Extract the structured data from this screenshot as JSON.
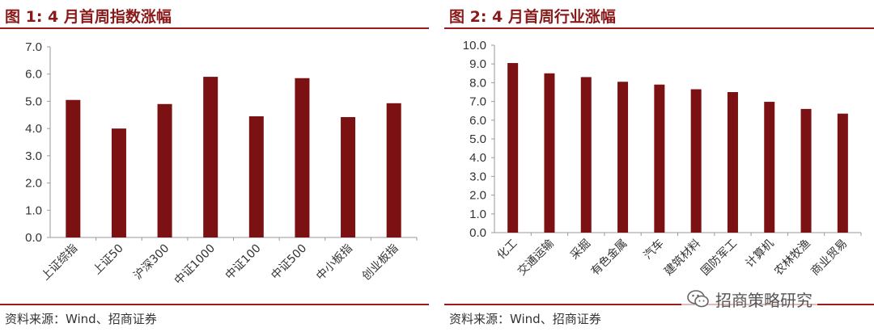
{
  "left": {
    "title": "图 1:  4 月首周指数涨幅",
    "source": "资料来源：Wind、招商证券"
  },
  "right": {
    "title": "图 2:  4 月首周行业涨幅",
    "source": "资料来源：Wind、招商证券"
  },
  "watermark": {
    "text": "招商策略研究",
    "icon": "wechat-icon"
  },
  "colors": {
    "bar": "#7b1113",
    "rule": "#9b1b1b",
    "title": "#8a1a1a"
  },
  "chart_data": [
    {
      "type": "bar",
      "title": "4 月首周指数涨幅",
      "categories": [
        "上证综指",
        "上证50",
        "沪深300",
        "中证1000",
        "中证100",
        "中证500",
        "中小板指",
        "创业板指"
      ],
      "values": [
        5.05,
        4.0,
        4.9,
        5.9,
        4.45,
        5.85,
        4.42,
        4.93
      ],
      "ylim": [
        0,
        7
      ],
      "yticks": [
        "0.0",
        "1.0",
        "2.0",
        "3.0",
        "4.0",
        "5.0",
        "6.0",
        "7.0"
      ],
      "grid": false,
      "xlabel": "",
      "ylabel": ""
    },
    {
      "type": "bar",
      "title": "4 月首周行业涨幅",
      "categories": [
        "化工",
        "交通运输",
        "采掘",
        "有色金属",
        "汽车",
        "建筑材料",
        "国防军工",
        "计算机",
        "农林牧渔",
        "商业贸易"
      ],
      "values": [
        9.05,
        8.5,
        8.3,
        8.05,
        7.9,
        7.65,
        7.5,
        6.98,
        6.6,
        6.35
      ],
      "ylim": [
        0,
        10
      ],
      "yticks": [
        "0.0",
        "1.0",
        "2.0",
        "3.0",
        "4.0",
        "5.0",
        "6.0",
        "7.0",
        "8.0",
        "9.0",
        "10.0"
      ],
      "grid": false,
      "xlabel": "",
      "ylabel": ""
    }
  ]
}
